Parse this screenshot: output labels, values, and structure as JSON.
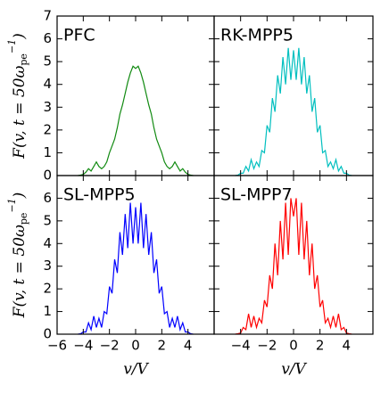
{
  "chart_data": [
    {
      "type": "line",
      "title": "PFC",
      "color": "#118a11",
      "ylabel": [
        "F(v, t = 50ω",
        "pe",
        "−1",
        ")"
      ],
      "xlim": [
        -6,
        6
      ],
      "ylim": [
        0,
        7
      ],
      "xticks": [
        -6,
        -4,
        -2,
        0,
        2,
        4
      ],
      "yticks": [
        0,
        1,
        2,
        3,
        4,
        5,
        6,
        7
      ],
      "xtick_labels": false,
      "ytick_labels": true,
      "x": [
        -4.4,
        -4.2,
        -4.0,
        -3.8,
        -3.6,
        -3.4,
        -3.2,
        -3.0,
        -2.8,
        -2.6,
        -2.4,
        -2.2,
        -2.0,
        -1.8,
        -1.6,
        -1.4,
        -1.2,
        -1.0,
        -0.8,
        -0.6,
        -0.4,
        -0.2,
        0,
        0.2,
        0.4,
        0.6,
        0.8,
        1.0,
        1.2,
        1.4,
        1.6,
        1.8,
        2.0,
        2.2,
        2.4,
        2.6,
        2.8,
        3.0,
        3.2,
        3.4,
        3.6,
        3.8,
        4.0,
        4.2,
        4.4
      ],
      "values": [
        0,
        0.02,
        0.05,
        0.15,
        0.3,
        0.2,
        0.4,
        0.6,
        0.4,
        0.3,
        0.4,
        0.6,
        1.0,
        1.3,
        1.6,
        2.1,
        2.7,
        3.1,
        3.6,
        4.1,
        4.5,
        4.8,
        4.7,
        4.8,
        4.5,
        4.1,
        3.6,
        3.1,
        2.7,
        2.1,
        1.6,
        1.3,
        1.0,
        0.6,
        0.4,
        0.3,
        0.4,
        0.6,
        0.4,
        0.2,
        0.3,
        0.15,
        0.05,
        0.02,
        0
      ]
    },
    {
      "type": "line",
      "title": "RK-MPP5",
      "color": "#00bfbf",
      "xlim": [
        -6,
        6
      ],
      "ylim": [
        0,
        7
      ],
      "xticks": [
        -6,
        -4,
        -2,
        0,
        2,
        4
      ],
      "yticks": [
        0,
        1,
        2,
        3,
        4,
        5,
        6,
        7
      ],
      "xtick_labels": false,
      "ytick_labels": false,
      "x": [
        -4.4,
        -4.2,
        -4.0,
        -3.8,
        -3.6,
        -3.4,
        -3.2,
        -3.0,
        -2.8,
        -2.6,
        -2.4,
        -2.2,
        -2.0,
        -1.8,
        -1.6,
        -1.4,
        -1.2,
        -1.0,
        -0.8,
        -0.6,
        -0.4,
        -0.2,
        0,
        0.2,
        0.4,
        0.6,
        0.8,
        1.0,
        1.2,
        1.4,
        1.6,
        1.8,
        2.0,
        2.2,
        2.4,
        2.6,
        2.8,
        3.0,
        3.2,
        3.4,
        3.6,
        3.8,
        4.0,
        4.2,
        4.4
      ],
      "values": [
        0,
        0.02,
        0.1,
        0.1,
        0.4,
        0.2,
        0.7,
        0.3,
        0.6,
        0.4,
        1.1,
        1.0,
        2.2,
        1.9,
        3.4,
        2.8,
        4.4,
        3.6,
        5.2,
        4.0,
        5.6,
        4.2,
        5.5,
        4.2,
        5.6,
        4.0,
        5.2,
        3.6,
        4.4,
        2.8,
        3.4,
        1.9,
        2.2,
        1.0,
        1.1,
        0.4,
        0.6,
        0.3,
        0.7,
        0.2,
        0.4,
        0.1,
        0.1,
        0.02,
        0
      ]
    },
    {
      "type": "line",
      "title": "SL-MPP5",
      "color": "#0000ff",
      "ylabel": [
        "F(v, t = 50ω",
        "pe",
        "−1",
        ")"
      ],
      "xlabel": "v/V",
      "xlim": [
        -6,
        6
      ],
      "ylim": [
        0,
        7
      ],
      "xticks": [
        {
          "value": -6,
          "label": "−6"
        },
        {
          "value": -4,
          "label": "−4"
        },
        {
          "value": -2,
          "label": "−2"
        },
        0,
        2,
        4
      ],
      "yticks": [
        0,
        1,
        2,
        3,
        4,
        5,
        6
      ],
      "xtick_labels": true,
      "ytick_labels": true,
      "x": [
        -4.4,
        -4.2,
        -4.0,
        -3.8,
        -3.6,
        -3.4,
        -3.2,
        -3.0,
        -2.8,
        -2.6,
        -2.4,
        -2.2,
        -2.0,
        -1.8,
        -1.6,
        -1.4,
        -1.2,
        -1.0,
        -0.8,
        -0.6,
        -0.4,
        -0.2,
        0,
        0.2,
        0.4,
        0.6,
        0.8,
        1.0,
        1.2,
        1.4,
        1.6,
        1.8,
        2.0,
        2.2,
        2.4,
        2.6,
        2.8,
        3.0,
        3.2,
        3.4,
        3.6,
        3.8,
        4.0,
        4.2,
        4.4
      ],
      "values": [
        0,
        0.02,
        0.1,
        0.1,
        0.5,
        0.2,
        0.8,
        0.3,
        0.7,
        0.3,
        1.0,
        0.9,
        2.1,
        1.8,
        3.3,
        2.7,
        4.5,
        3.5,
        5.3,
        3.8,
        5.8,
        4.0,
        5.6,
        4.0,
        5.8,
        3.8,
        5.3,
        3.5,
        4.5,
        2.7,
        3.3,
        1.8,
        2.1,
        0.9,
        1.0,
        0.3,
        0.7,
        0.3,
        0.8,
        0.2,
        0.5,
        0.1,
        0.1,
        0.02,
        0
      ]
    },
    {
      "type": "line",
      "title": "SL-MPP7",
      "color": "#ff0000",
      "xlabel": "v/V",
      "xlim": [
        -6,
        6
      ],
      "ylim": [
        0,
        7
      ],
      "xticks": [
        {
          "value": -4,
          "label": "−4"
        },
        {
          "value": -2,
          "label": "−2"
        },
        0,
        2,
        4
      ],
      "yticks": [
        0,
        1,
        2,
        3,
        4,
        5,
        6
      ],
      "xtick_labels": true,
      "ytick_labels": false,
      "x": [
        -4.4,
        -4.2,
        -4.0,
        -3.8,
        -3.6,
        -3.4,
        -3.2,
        -3.0,
        -2.8,
        -2.6,
        -2.4,
        -2.2,
        -2.0,
        -1.8,
        -1.6,
        -1.4,
        -1.2,
        -1.0,
        -0.8,
        -0.6,
        -0.4,
        -0.2,
        0,
        0.2,
        0.4,
        0.6,
        0.8,
        1.0,
        1.2,
        1.4,
        1.6,
        1.8,
        2.0,
        2.2,
        2.4,
        2.6,
        2.8,
        3.0,
        3.2,
        3.4,
        3.6,
        3.8,
        4.0,
        4.2,
        4.4
      ],
      "values": [
        0,
        0.02,
        0.05,
        0.3,
        0.2,
        0.9,
        0.3,
        0.8,
        0.3,
        0.7,
        0.5,
        1.5,
        1.2,
        2.6,
        2.0,
        4.0,
        2.6,
        5.0,
        3.3,
        5.8,
        3.5,
        6.0,
        5.2,
        6.0,
        3.5,
        5.8,
        3.3,
        5.0,
        2.6,
        4.0,
        2.0,
        2.6,
        1.2,
        1.5,
        0.5,
        0.7,
        0.3,
        0.8,
        0.3,
        0.9,
        0.2,
        0.3,
        0.05,
        0.02,
        0
      ]
    }
  ]
}
